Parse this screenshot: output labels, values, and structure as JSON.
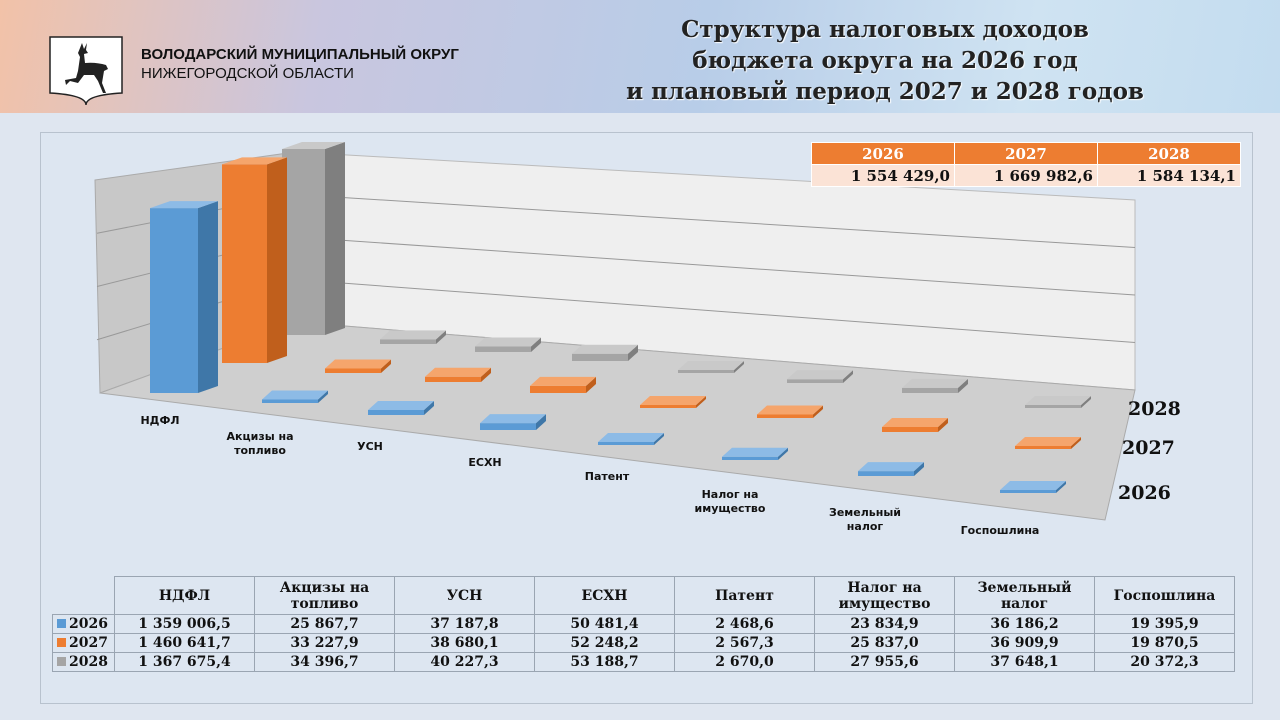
{
  "header": {
    "org_line1": "ВОЛОДАРСКИЙ МУНИЦИПАЛЬНЫЙ ОКРУГ",
    "org_line2": "НИЖЕГОРОДСКОЙ ОБЛАСТИ",
    "title_lines": [
      "Структура налоговых доходов",
      "бюджета округа на 2026 год",
      "и плановый период 2027 и 2028 годов"
    ]
  },
  "totals": {
    "years": [
      "2026",
      "2027",
      "2028"
    ],
    "values": [
      "1 554 429,0",
      "1 669 982,6",
      "1 584 134,1"
    ]
  },
  "colors": {
    "2026": "#5b9bd5",
    "2027": "#ed7d31",
    "2028": "#a5a5a5"
  },
  "chart_data": {
    "type": "bar",
    "subtype": "3d-column",
    "title": "Структура налоговых доходов бюджета округа на 2026 год и плановый период 2027 и 2028 годов",
    "categories": [
      "НДФЛ",
      "Акцизы на топливо",
      "УСН",
      "ЕСХН",
      "Патент",
      "Налог на имущество",
      "Земельный налог",
      "Госпошлина"
    ],
    "series": [
      {
        "name": "2026",
        "values": [
          1359006.5,
          25867.7,
          37187.8,
          50481.4,
          2468.6,
          23834.9,
          36186.2,
          19395.9
        ],
        "labels": [
          "1 359 006,5",
          "25 867,7",
          "37 187,8",
          "50 481,4",
          "2 468,6",
          "23 834,9",
          "36 186,2",
          "19 395,9"
        ]
      },
      {
        "name": "2027",
        "values": [
          1460641.7,
          33227.9,
          38680.1,
          52248.2,
          2567.3,
          25837.0,
          36909.9,
          19870.5
        ],
        "labels": [
          "1 460 641,7",
          "33 227,9",
          "38 680,1",
          "52 248,2",
          "2 567,3",
          "25 837,0",
          "36 909,9",
          "19 870,5"
        ]
      },
      {
        "name": "2028",
        "values": [
          1367675.4,
          34396.7,
          40227.3,
          53188.7,
          2670.0,
          27955.6,
          37648.1,
          20372.3
        ],
        "labels": [
          "1 367 675,4",
          "34 396,7",
          "40 227,3",
          "53 188,7",
          "2 670,0",
          "27 955,6",
          "37 648,1",
          "20 372,3"
        ]
      }
    ],
    "grid": true,
    "legend": "data-table"
  }
}
